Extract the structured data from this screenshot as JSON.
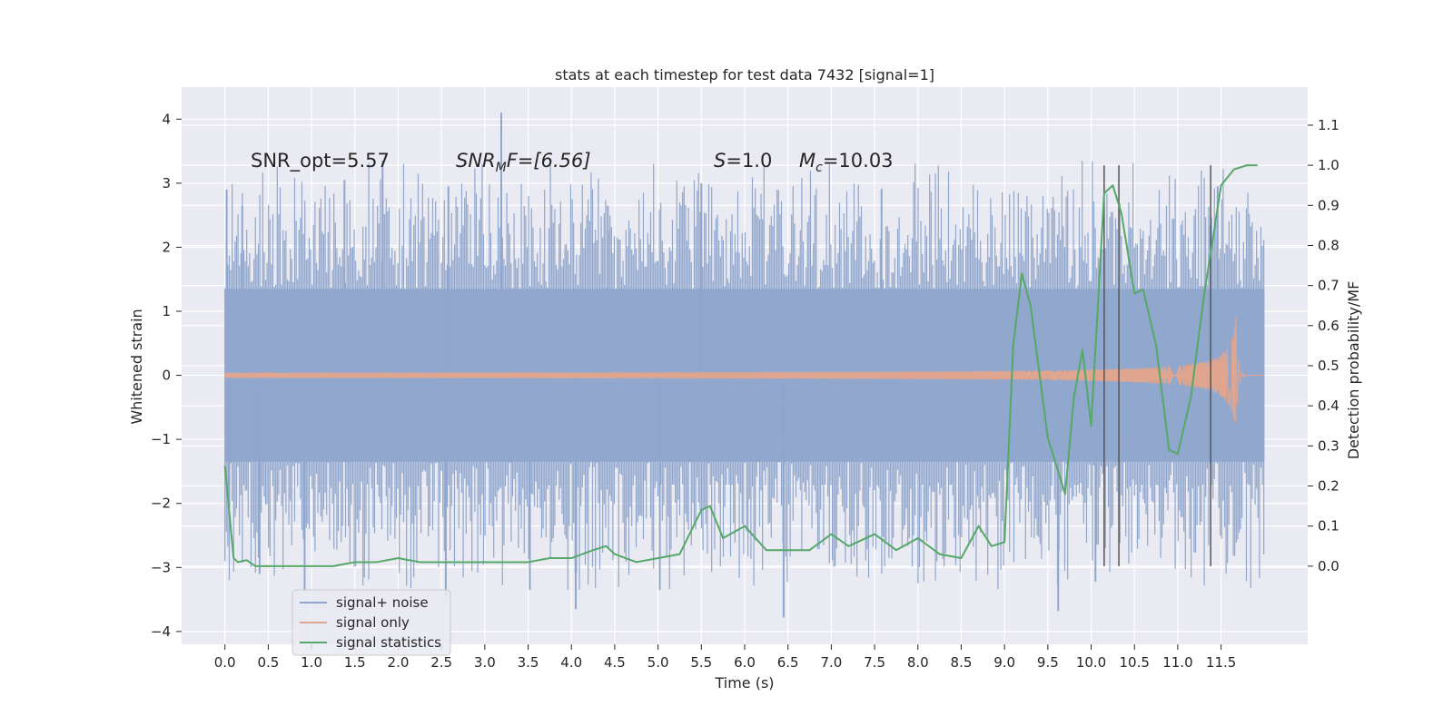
{
  "chart_data": {
    "type": "line",
    "title": "stats at each timestep for test data 7432 [signal=1]",
    "xlabel": "Time (s)",
    "ylabel": "Whitened strain",
    "y2label": "Detection probability/MF",
    "xlim": [
      -0.5,
      12.5
    ],
    "ylim": [
      -4.2,
      4.5
    ],
    "y2lim": [
      -0.195,
      1.195
    ],
    "x_ticks": [
      0.0,
      0.5,
      1.0,
      1.5,
      2.0,
      2.5,
      3.0,
      3.5,
      4.0,
      4.5,
      5.0,
      5.5,
      6.0,
      6.5,
      7.0,
      7.5,
      8.0,
      8.5,
      9.0,
      9.5,
      10.0,
      10.5,
      11.0,
      11.5
    ],
    "x_tick_labels": [
      "0.0",
      "0.5",
      "1.0",
      "1.5",
      "2.0",
      "2.5",
      "3.0",
      "3.5",
      "4.0",
      "4.5",
      "5.0",
      "5.5",
      "6.0",
      "6.5",
      "7.0",
      "7.5",
      "8.0",
      "8.5",
      "9.0",
      "9.5",
      "10.0",
      "10.5",
      "11.0",
      "11.5"
    ],
    "y_ticks": [
      4,
      3,
      2,
      1,
      0,
      -1,
      -2,
      -3,
      -4
    ],
    "y_tick_labels": [
      "4",
      "3",
      "2",
      "1",
      "0",
      "−1",
      "−2",
      "−3",
      "−4"
    ],
    "y2_ticks": [
      1.1,
      1.0,
      0.9,
      0.8,
      0.7,
      0.6,
      0.5,
      0.4,
      0.3,
      0.2,
      0.1,
      0.0
    ],
    "y2_tick_labels": [
      "1.1",
      "1.0",
      "0.9",
      "0.8",
      "0.7",
      "0.6",
      "0.5",
      "0.4",
      "0.3",
      "0.2",
      "0.1",
      "0.0"
    ],
    "grid": true,
    "legend_position": "lower-left",
    "legend": [
      {
        "name": "signal+ noise",
        "color": "#8fa6cd"
      },
      {
        "name": "signal only",
        "color": "#e0a58f"
      },
      {
        "name": "signal statistics",
        "color": "#55a868"
      }
    ],
    "annotations": {
      "snr_opt": "SNR_opt=5.57",
      "snr_mf_sym": "SNR",
      "snr_mf_sub": "M",
      "snr_mf_rest": "F=[6.56]",
      "s_sym": "S",
      "s_rest": "=1.0",
      "mc_sym": "M",
      "mc_sub": "c",
      "mc_rest": "=10.03"
    },
    "series": [
      {
        "name": "signal+ noise",
        "axis": "left",
        "color": "#8fa6cd",
        "t_range": [
          0.0,
          12.0
        ],
        "band_core": [
          -1.35,
          1.35
        ],
        "typical_peak_range": [
          1.6,
          3.0
        ],
        "x_spikes": [
          0.02,
          0.2,
          1.38,
          1.82,
          2.58,
          3.19,
          4.42,
          5.5,
          7.58,
          11.46
        ],
        "y_spikes": [
          2.9,
          2.65,
          3.05,
          3.35,
          2.95,
          4.1,
          2.65,
          3.0,
          2.9,
          2.95
        ],
        "x_dips": [
          0.05,
          0.4,
          0.92,
          2.55,
          3.52,
          4.05,
          5.02,
          6.45,
          9.62,
          10.05
        ],
        "y_dips": [
          -2.05,
          -3.1,
          -3.38,
          -3.45,
          -3.35,
          -3.65,
          -3.35,
          -3.78,
          -3.68,
          -3.22
        ]
      },
      {
        "name": "signal only",
        "axis": "left",
        "color": "#e0a58f",
        "t_range": [
          0.0,
          12.0
        ],
        "merger_time": 11.67,
        "peak_amplitude": 0.9
      },
      {
        "name": "signal statistics",
        "axis": "right",
        "color": "#55a868",
        "x": [
          0.0,
          0.1,
          0.15,
          0.25,
          0.35,
          0.5,
          0.75,
          1.0,
          1.25,
          1.5,
          1.75,
          2.0,
          2.25,
          2.5,
          2.75,
          3.0,
          3.25,
          3.5,
          3.75,
          4.0,
          4.25,
          4.4,
          4.5,
          4.75,
          5.0,
          5.25,
          5.5,
          5.6,
          5.75,
          6.0,
          6.25,
          6.5,
          6.75,
          7.0,
          7.2,
          7.5,
          7.75,
          8.0,
          8.25,
          8.5,
          8.7,
          8.85,
          9.0,
          9.1,
          9.2,
          9.3,
          9.5,
          9.7,
          9.8,
          9.9,
          10.0,
          10.15,
          10.25,
          10.35,
          10.5,
          10.6,
          10.75,
          10.9,
          11.0,
          11.15,
          11.3,
          11.5,
          11.65,
          11.8,
          11.92
        ],
        "y": [
          0.25,
          0.02,
          0.01,
          0.015,
          0.0,
          0.0,
          0.0,
          0.0,
          0.0,
          0.01,
          0.01,
          0.02,
          0.01,
          0.01,
          0.01,
          0.01,
          0.01,
          0.01,
          0.02,
          0.02,
          0.04,
          0.05,
          0.03,
          0.01,
          0.02,
          0.03,
          0.14,
          0.15,
          0.07,
          0.1,
          0.04,
          0.04,
          0.04,
          0.08,
          0.05,
          0.08,
          0.04,
          0.07,
          0.03,
          0.02,
          0.1,
          0.05,
          0.06,
          0.55,
          0.73,
          0.65,
          0.32,
          0.18,
          0.42,
          0.54,
          0.35,
          0.93,
          0.95,
          0.88,
          0.68,
          0.69,
          0.55,
          0.29,
          0.28,
          0.42,
          0.67,
          0.95,
          0.99,
          1.0,
          1.0
        ]
      }
    ],
    "vertical_markers": {
      "x": [
        10.15,
        10.32,
        11.38
      ],
      "y2_range": [
        0.0,
        1.0
      ],
      "color": "#555555"
    }
  }
}
